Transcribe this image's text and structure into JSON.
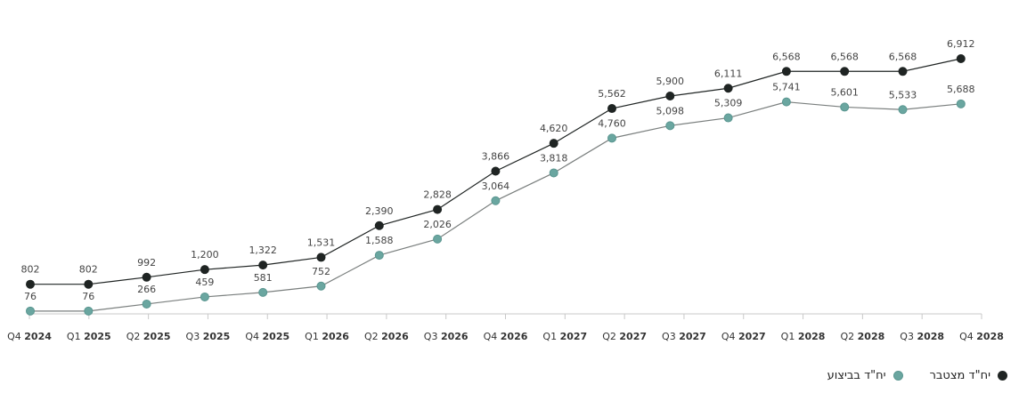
{
  "chart_data": {
    "type": "line",
    "categories": [
      "Q4 2024",
      "Q1 2025",
      "Q2 2025",
      "Q3 2025",
      "Q4 2025",
      "Q1 2026",
      "Q2 2026",
      "Q3 2026",
      "Q4 2026",
      "Q1 2027",
      "Q2 2027",
      "Q3 2027",
      "Q4 2027",
      "Q1 2028",
      "Q2 2028",
      "Q3 2028",
      "Q4 2028"
    ],
    "series": [
      {
        "name": "יח\"ד מצטבר",
        "color": "#1f2423",
        "values": [
          802,
          802,
          992,
          1200,
          1322,
          1531,
          2390,
          2828,
          3866,
          4620,
          5562,
          5900,
          6111,
          6568,
          6568,
          6568,
          6912
        ],
        "labels": [
          "802",
          "802",
          "992",
          "1,200",
          "1,322",
          "1,531",
          "2,390",
          "2,828",
          "3,866",
          "4,620",
          "5,562",
          "5,900",
          "6,111",
          "6,568",
          "6,568",
          "6,568",
          "6,912"
        ]
      },
      {
        "name": "יח\"ד בביצוע",
        "color": "#6aa6a0",
        "values": [
          76,
          76,
          266,
          459,
          581,
          752,
          1588,
          2026,
          3064,
          3818,
          4760,
          5098,
          5309,
          5741,
          5601,
          5533,
          5688
        ],
        "labels": [
          "76",
          "76",
          "266",
          "459",
          "581",
          "752",
          "1,588",
          "2,026",
          "3,064",
          "3,818",
          "4,760",
          "5,098",
          "5,309",
          "5,741",
          "5,601",
          "5,533",
          "5,688"
        ]
      }
    ],
    "ylim": [
      0,
      7000
    ],
    "grid": false,
    "legend_position": "bottom-right"
  }
}
